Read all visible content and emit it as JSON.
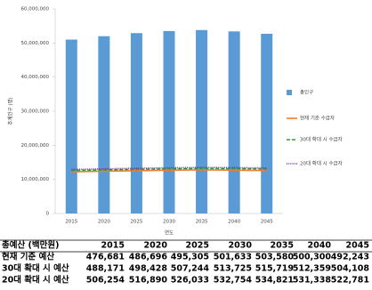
{
  "chart_data": {
    "type": "bar",
    "x_label": "연도",
    "y_label": "추계인구 (명)",
    "categories": [
      "2015",
      "2020",
      "2025",
      "2030",
      "2035",
      "2040",
      "2045"
    ],
    "series": [
      {
        "name": "총인구",
        "type": "bar",
        "color": "#5b9bd5",
        "values": [
          51000000,
          52000000,
          52900000,
          53500000,
          53800000,
          53400000,
          52700000
        ]
      },
      {
        "name": "현재 기준 수급자",
        "type": "line",
        "dash": "solid",
        "color": "#ed7d31",
        "values": [
          12200000,
          12400000,
          12550000,
          12700000,
          12800000,
          12700000,
          12600000
        ]
      },
      {
        "name": "30대 확대 시 수급자",
        "type": "line",
        "dash": "dashed",
        "color": "#2ca02c",
        "values": [
          12600000,
          12800000,
          12950000,
          13100000,
          13200000,
          13150000,
          13050000
        ]
      },
      {
        "name": "20대 확대 시 수급자",
        "type": "line",
        "dash": "dotted",
        "color": "#7030a0",
        "values": [
          12900000,
          13100000,
          13250000,
          13400000,
          13500000,
          13450000,
          13350000
        ]
      }
    ],
    "ylim": [
      0,
      60000000
    ],
    "yticks": [
      0,
      {
        "value": 10000000,
        "label": "10,000,000"
      },
      {
        "value": 20000000,
        "label": "20,000,000"
      },
      {
        "value": 30000000,
        "label": "30,000,000"
      },
      {
        "value": 40000000,
        "label": "40,000,000"
      },
      {
        "value": 50000000,
        "label": "50,000,000"
      },
      {
        "value": 60000000,
        "label": "60,000,000"
      }
    ],
    "grid": false,
    "legend": "right"
  },
  "table": {
    "header": [
      "총예산 (백만원)",
      "2015",
      "2020",
      "2025",
      "2030",
      "2035",
      "2040",
      "2045"
    ],
    "rows": [
      [
        "현재 기준 예산",
        "476,681",
        "486,696",
        "495,305",
        "501,633",
        "503,580",
        "500,300",
        "492,243"
      ],
      [
        "30대 확대 시 예산",
        "488,171",
        "498,428",
        "507,244",
        "513,725",
        "515,719",
        "512,359",
        "504,108"
      ],
      [
        "20대 확대 시 예산",
        "506,254",
        "516,890",
        "526,033",
        "532,754",
        "534,821",
        "531,338",
        "522,781"
      ]
    ]
  }
}
